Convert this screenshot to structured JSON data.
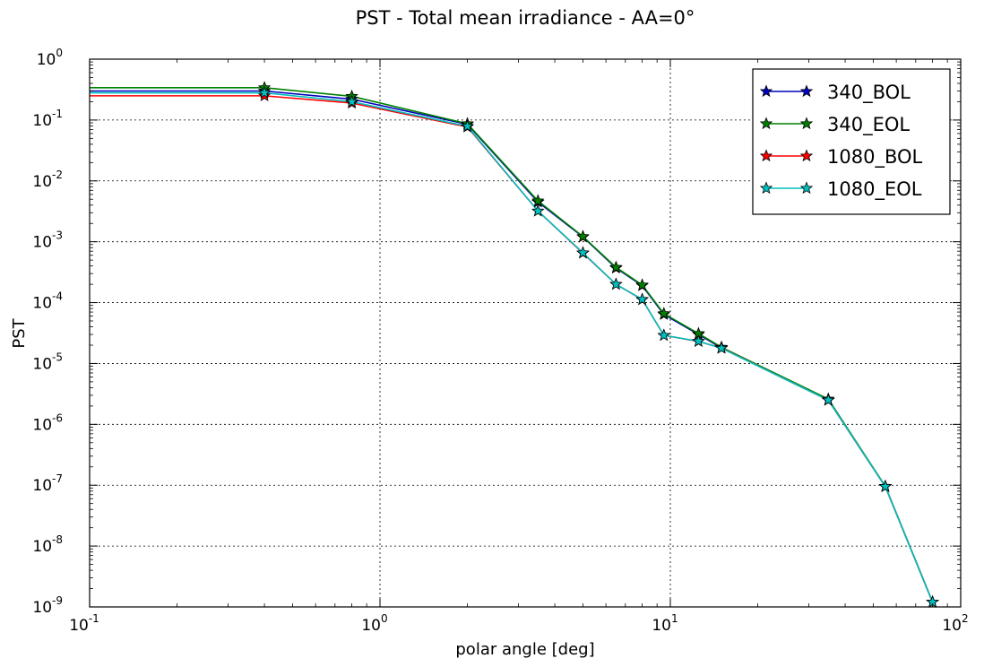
{
  "chart_data": {
    "type": "line",
    "title": "PST - Total mean irradiance - AA=0°",
    "xlabel": "polar angle [deg]",
    "ylabel": "PST",
    "xscale": "log",
    "yscale": "log",
    "xlim": [
      0.1,
      100
    ],
    "ylim": [
      1e-09,
      1
    ],
    "grid": true,
    "legend_position": "top-right",
    "x_ticks": [
      {
        "base": "10",
        "exp": "-1"
      },
      {
        "base": "10",
        "exp": "0"
      },
      {
        "base": "10",
        "exp": "1"
      },
      {
        "base": "10",
        "exp": "2"
      }
    ],
    "y_ticks": [
      {
        "base": "10",
        "exp": "0"
      },
      {
        "base": "10",
        "exp": "-1"
      },
      {
        "base": "10",
        "exp": "-2"
      },
      {
        "base": "10",
        "exp": "-3"
      },
      {
        "base": "10",
        "exp": "-4"
      },
      {
        "base": "10",
        "exp": "-5"
      },
      {
        "base": "10",
        "exp": "-6"
      },
      {
        "base": "10",
        "exp": "-7"
      },
      {
        "base": "10",
        "exp": "-8"
      },
      {
        "base": "10",
        "exp": "-9"
      }
    ],
    "series": [
      {
        "name": "340_BOL",
        "color": "#0000bf",
        "x": [
          0.1,
          0.4,
          0.8,
          2,
          3.5,
          5,
          6.5,
          8,
          9.5,
          12.5,
          15,
          35,
          55,
          80
        ],
        "y": [
          0.3,
          0.3,
          0.22,
          0.085,
          0.0045,
          0.0012,
          0.00037,
          0.00019,
          6.4e-05,
          3e-05,
          1.8e-05,
          2.5e-06,
          9.5e-08,
          1.2e-09
        ]
      },
      {
        "name": "340_EOL",
        "color": "#008000",
        "x": [
          0.1,
          0.4,
          0.8,
          2,
          3.5,
          5,
          6.5,
          8,
          9.5,
          12.5,
          15,
          35,
          55,
          80
        ],
        "y": [
          0.34,
          0.34,
          0.245,
          0.087,
          0.0047,
          0.00122,
          0.00038,
          0.000195,
          6.6e-05,
          3.1e-05,
          1.85e-05,
          2.6e-06,
          9.6e-08,
          1.2e-09
        ]
      },
      {
        "name": "1080_BOL",
        "color": "#ff0000",
        "x": [
          0.1,
          0.4,
          0.8,
          2,
          3.5,
          5,
          6.5,
          8,
          9.5,
          12.5,
          15,
          35,
          55,
          80
        ],
        "y": [
          0.25,
          0.25,
          0.19,
          0.077,
          0.0032,
          0.00065,
          0.0002,
          0.000112,
          2.9e-05,
          2.3e-05,
          1.8e-05,
          2.5e-06,
          9.5e-08,
          1.2e-09
        ]
      },
      {
        "name": "1080_EOL",
        "color": "#00bfbf",
        "x": [
          0.1,
          0.4,
          0.8,
          2,
          3.5,
          5,
          6.5,
          8,
          9.5,
          12.5,
          15,
          35,
          55,
          80
        ],
        "y": [
          0.28,
          0.28,
          0.2,
          0.079,
          0.0032,
          0.00066,
          0.0002,
          0.000113,
          2.9e-05,
          2.32e-05,
          1.78e-05,
          2.5e-06,
          9.5e-08,
          1.2e-09
        ]
      }
    ]
  }
}
